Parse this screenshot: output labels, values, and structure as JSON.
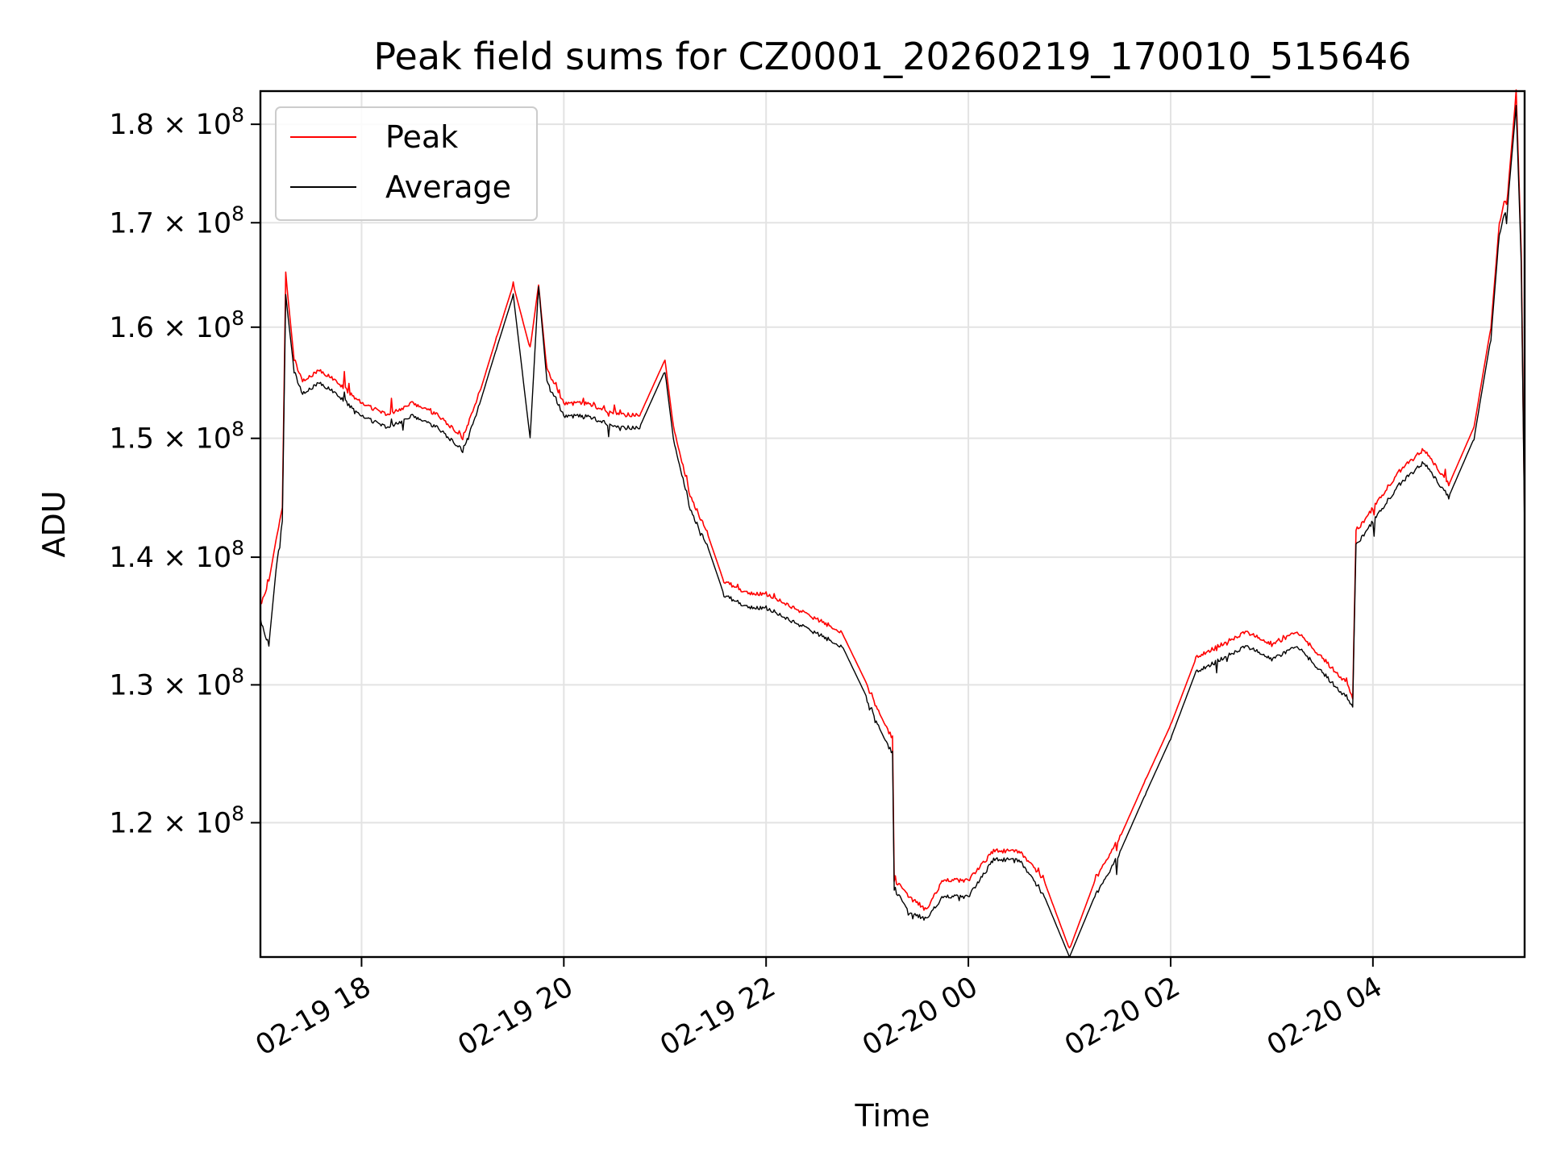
{
  "chart_data": {
    "type": "line",
    "title": "Peak field sums for CZ0001_20260219_170010_515646",
    "xlabel": "Time",
    "ylabel": "ADU",
    "xlim": [
      "2026-02-19 17:00",
      "2026-02-20 05:30"
    ],
    "ylim": [
      111000000.0,
      183500000.0
    ],
    "yscale": "log",
    "grid": true,
    "legend_position": "top-left",
    "x_ticks": [
      "02-19 18",
      "02-19 20",
      "02-19 22",
      "02-20 00",
      "02-20 02",
      "02-20 04"
    ],
    "x_tick_times": [
      "2026-02-19 18:00",
      "2026-02-19 20:00",
      "2026-02-19 22:00",
      "2026-02-20 00:00",
      "2026-02-20 02:00",
      "2026-02-20 04:00"
    ],
    "y_ticks": [
      {
        "value": 120000000.0,
        "mantissa": "1.2",
        "exponent": "8"
      },
      {
        "value": 130000000.0,
        "mantissa": "1.3",
        "exponent": "8"
      },
      {
        "value": 140000000.0,
        "mantissa": "1.4",
        "exponent": "8"
      },
      {
        "value": 150000000.0,
        "mantissa": "1.5",
        "exponent": "8"
      },
      {
        "value": 160000000.0,
        "mantissa": "1.6",
        "exponent": "8"
      },
      {
        "value": 170000000.0,
        "mantissa": "1.7",
        "exponent": "8"
      },
      {
        "value": 180000000.0,
        "mantissa": "1.8",
        "exponent": "8"
      }
    ],
    "series": [
      {
        "name": "Peak",
        "color": "#ff0000",
        "x": [
          "2026-02-19 17:00",
          "2026-02-19 17:05",
          "2026-02-19 17:10",
          "2026-02-19 17:13",
          "2026-02-19 17:15",
          "2026-02-19 17:20",
          "2026-02-19 17:25",
          "2026-02-19 17:35",
          "2026-02-19 17:45",
          "2026-02-19 18:00",
          "2026-02-19 18:15",
          "2026-02-19 18:30",
          "2026-02-19 18:45",
          "2026-02-19 19:00",
          "2026-02-19 19:10",
          "2026-02-19 19:20",
          "2026-02-19 19:30",
          "2026-02-19 19:40",
          "2026-02-19 19:45",
          "2026-02-19 19:50",
          "2026-02-19 20:00",
          "2026-02-19 20:15",
          "2026-02-19 20:30",
          "2026-02-19 20:45",
          "2026-02-19 21:00",
          "2026-02-19 21:05",
          "2026-02-19 21:10",
          "2026-02-19 21:15",
          "2026-02-19 21:25",
          "2026-02-19 21:35",
          "2026-02-19 21:50",
          "2026-02-19 22:00",
          "2026-02-19 22:15",
          "2026-02-19 22:30",
          "2026-02-19 22:45",
          "2026-02-19 23:00",
          "2026-02-19 23:10",
          "2026-02-19 23:15",
          "2026-02-19 23:16",
          "2026-02-19 23:25",
          "2026-02-19 23:35",
          "2026-02-19 23:45",
          "2026-02-20 00:00",
          "2026-02-20 00:15",
          "2026-02-20 00:30",
          "2026-02-20 00:45",
          "2026-02-20 01:00",
          "2026-02-20 01:15",
          "2026-02-20 01:30",
          "2026-02-20 01:45",
          "2026-02-20 02:00",
          "2026-02-20 02:15",
          "2026-02-20 02:30",
          "2026-02-20 02:45",
          "2026-02-20 03:00",
          "2026-02-20 03:15",
          "2026-02-20 03:30",
          "2026-02-20 03:45",
          "2026-02-20 03:48",
          "2026-02-20 03:50",
          "2026-02-20 04:00",
          "2026-02-20 04:15",
          "2026-02-20 04:30",
          "2026-02-20 04:45",
          "2026-02-20 05:00",
          "2026-02-20 05:10",
          "2026-02-20 05:15",
          "2026-02-20 05:20",
          "2026-02-20 05:25",
          "2026-02-20 05:28",
          "2026-02-20 05:30"
        ],
        "values": [
          136000000.0,
          138000000.0,
          142000000.0,
          144000000.0,
          165000000.0,
          157000000.0,
          155000000.0,
          156000000.0,
          155000000.0,
          153000000.0,
          152000000.0,
          153000000.0,
          152000000.0,
          150000000.0,
          154000000.0,
          159000000.0,
          164000000.0,
          158000000.0,
          164000000.0,
          156000000.0,
          153000000.0,
          153000000.0,
          152000000.0,
          152000000.0,
          157000000.0,
          151000000.0,
          148000000.0,
          145000000.0,
          142000000.0,
          138000000.0,
          137000000.0,
          137000000.0,
          136000000.0,
          135000000.0,
          134000000.0,
          130000000.0,
          127000000.0,
          126000000.0,
          116000000.0,
          115000000.0,
          114000000.0,
          116000000.0,
          116000000.0,
          118000000.0,
          118000000.0,
          116000000.0,
          111500000.0,
          116000000.0,
          119000000.0,
          123000000.0,
          127000000.0,
          132000000.0,
          133000000.0,
          134000000.0,
          133000000.0,
          134000000.0,
          132000000.0,
          130000000.0,
          129000000.0,
          142000000.0,
          144000000.0,
          147000000.0,
          149000000.0,
          146000000.0,
          151000000.0,
          160000000.0,
          170000000.0,
          173000000.0,
          183500000.0,
          167000000.0,
          143000000.0
        ]
      },
      {
        "name": "Average",
        "color": "#000000",
        "x": [
          "2026-02-19 17:00",
          "2026-02-19 17:05",
          "2026-02-19 17:10",
          "2026-02-19 17:13",
          "2026-02-19 17:15",
          "2026-02-19 17:20",
          "2026-02-19 17:25",
          "2026-02-19 17:35",
          "2026-02-19 17:45",
          "2026-02-19 18:00",
          "2026-02-19 18:15",
          "2026-02-19 18:30",
          "2026-02-19 18:45",
          "2026-02-19 19:00",
          "2026-02-19 19:10",
          "2026-02-19 19:20",
          "2026-02-19 19:30",
          "2026-02-19 19:40",
          "2026-02-19 19:45",
          "2026-02-19 19:50",
          "2026-02-19 20:00",
          "2026-02-19 20:15",
          "2026-02-19 20:30",
          "2026-02-19 20:45",
          "2026-02-19 21:00",
          "2026-02-19 21:05",
          "2026-02-19 21:10",
          "2026-02-19 21:15",
          "2026-02-19 21:25",
          "2026-02-19 21:35",
          "2026-02-19 21:50",
          "2026-02-19 22:00",
          "2026-02-19 22:15",
          "2026-02-19 22:30",
          "2026-02-19 22:45",
          "2026-02-19 23:00",
          "2026-02-19 23:10",
          "2026-02-19 23:15",
          "2026-02-19 23:16",
          "2026-02-19 23:25",
          "2026-02-19 23:35",
          "2026-02-19 23:45",
          "2026-02-20 00:00",
          "2026-02-20 00:15",
          "2026-02-20 00:30",
          "2026-02-20 00:45",
          "2026-02-20 01:00",
          "2026-02-20 01:15",
          "2026-02-20 01:30",
          "2026-02-20 01:45",
          "2026-02-20 02:00",
          "2026-02-20 02:15",
          "2026-02-20 02:30",
          "2026-02-20 02:45",
          "2026-02-20 03:00",
          "2026-02-20 03:15",
          "2026-02-20 03:30",
          "2026-02-20 03:45",
          "2026-02-20 03:48",
          "2026-02-20 03:50",
          "2026-02-20 04:00",
          "2026-02-20 04:15",
          "2026-02-20 04:30",
          "2026-02-20 04:45",
          "2026-02-20 05:00",
          "2026-02-20 05:10",
          "2026-02-20 05:15",
          "2026-02-20 05:20",
          "2026-02-20 05:25",
          "2026-02-20 05:28",
          "2026-02-20 05:30"
        ],
        "values": [
          135000000.0,
          133000000.0,
          140000000.0,
          143000000.0,
          163000000.0,
          156000000.0,
          154000000.0,
          155000000.0,
          154000000.0,
          152000000.0,
          151000000.0,
          152000000.0,
          151000000.0,
          149000000.0,
          153000000.0,
          158000000.0,
          163000000.0,
          150000000.0,
          164000000.0,
          155000000.0,
          152000000.0,
          152000000.0,
          151000000.0,
          151000000.0,
          156000000.0,
          150000000.0,
          147000000.0,
          144000000.0,
          141000000.0,
          137000000.0,
          136000000.0,
          136000000.0,
          135000000.0,
          134000000.0,
          133000000.0,
          129000000.0,
          126000000.0,
          125000000.0,
          115500000.0,
          114000000.0,
          113500000.0,
          115000000.0,
          115000000.0,
          117500000.0,
          117500000.0,
          115000000.0,
          111000000.0,
          115000000.0,
          118000000.0,
          122000000.0,
          126000000.0,
          131000000.0,
          132000000.0,
          133000000.0,
          132000000.0,
          133000000.0,
          131000000.0,
          129000000.0,
          128500000.0,
          141000000.0,
          143000000.0,
          146000000.0,
          148000000.0,
          145000000.0,
          150000000.0,
          159000000.0,
          169000000.0,
          172000000.0,
          182000000.0,
          166000000.0,
          142000000.0
        ]
      }
    ]
  }
}
